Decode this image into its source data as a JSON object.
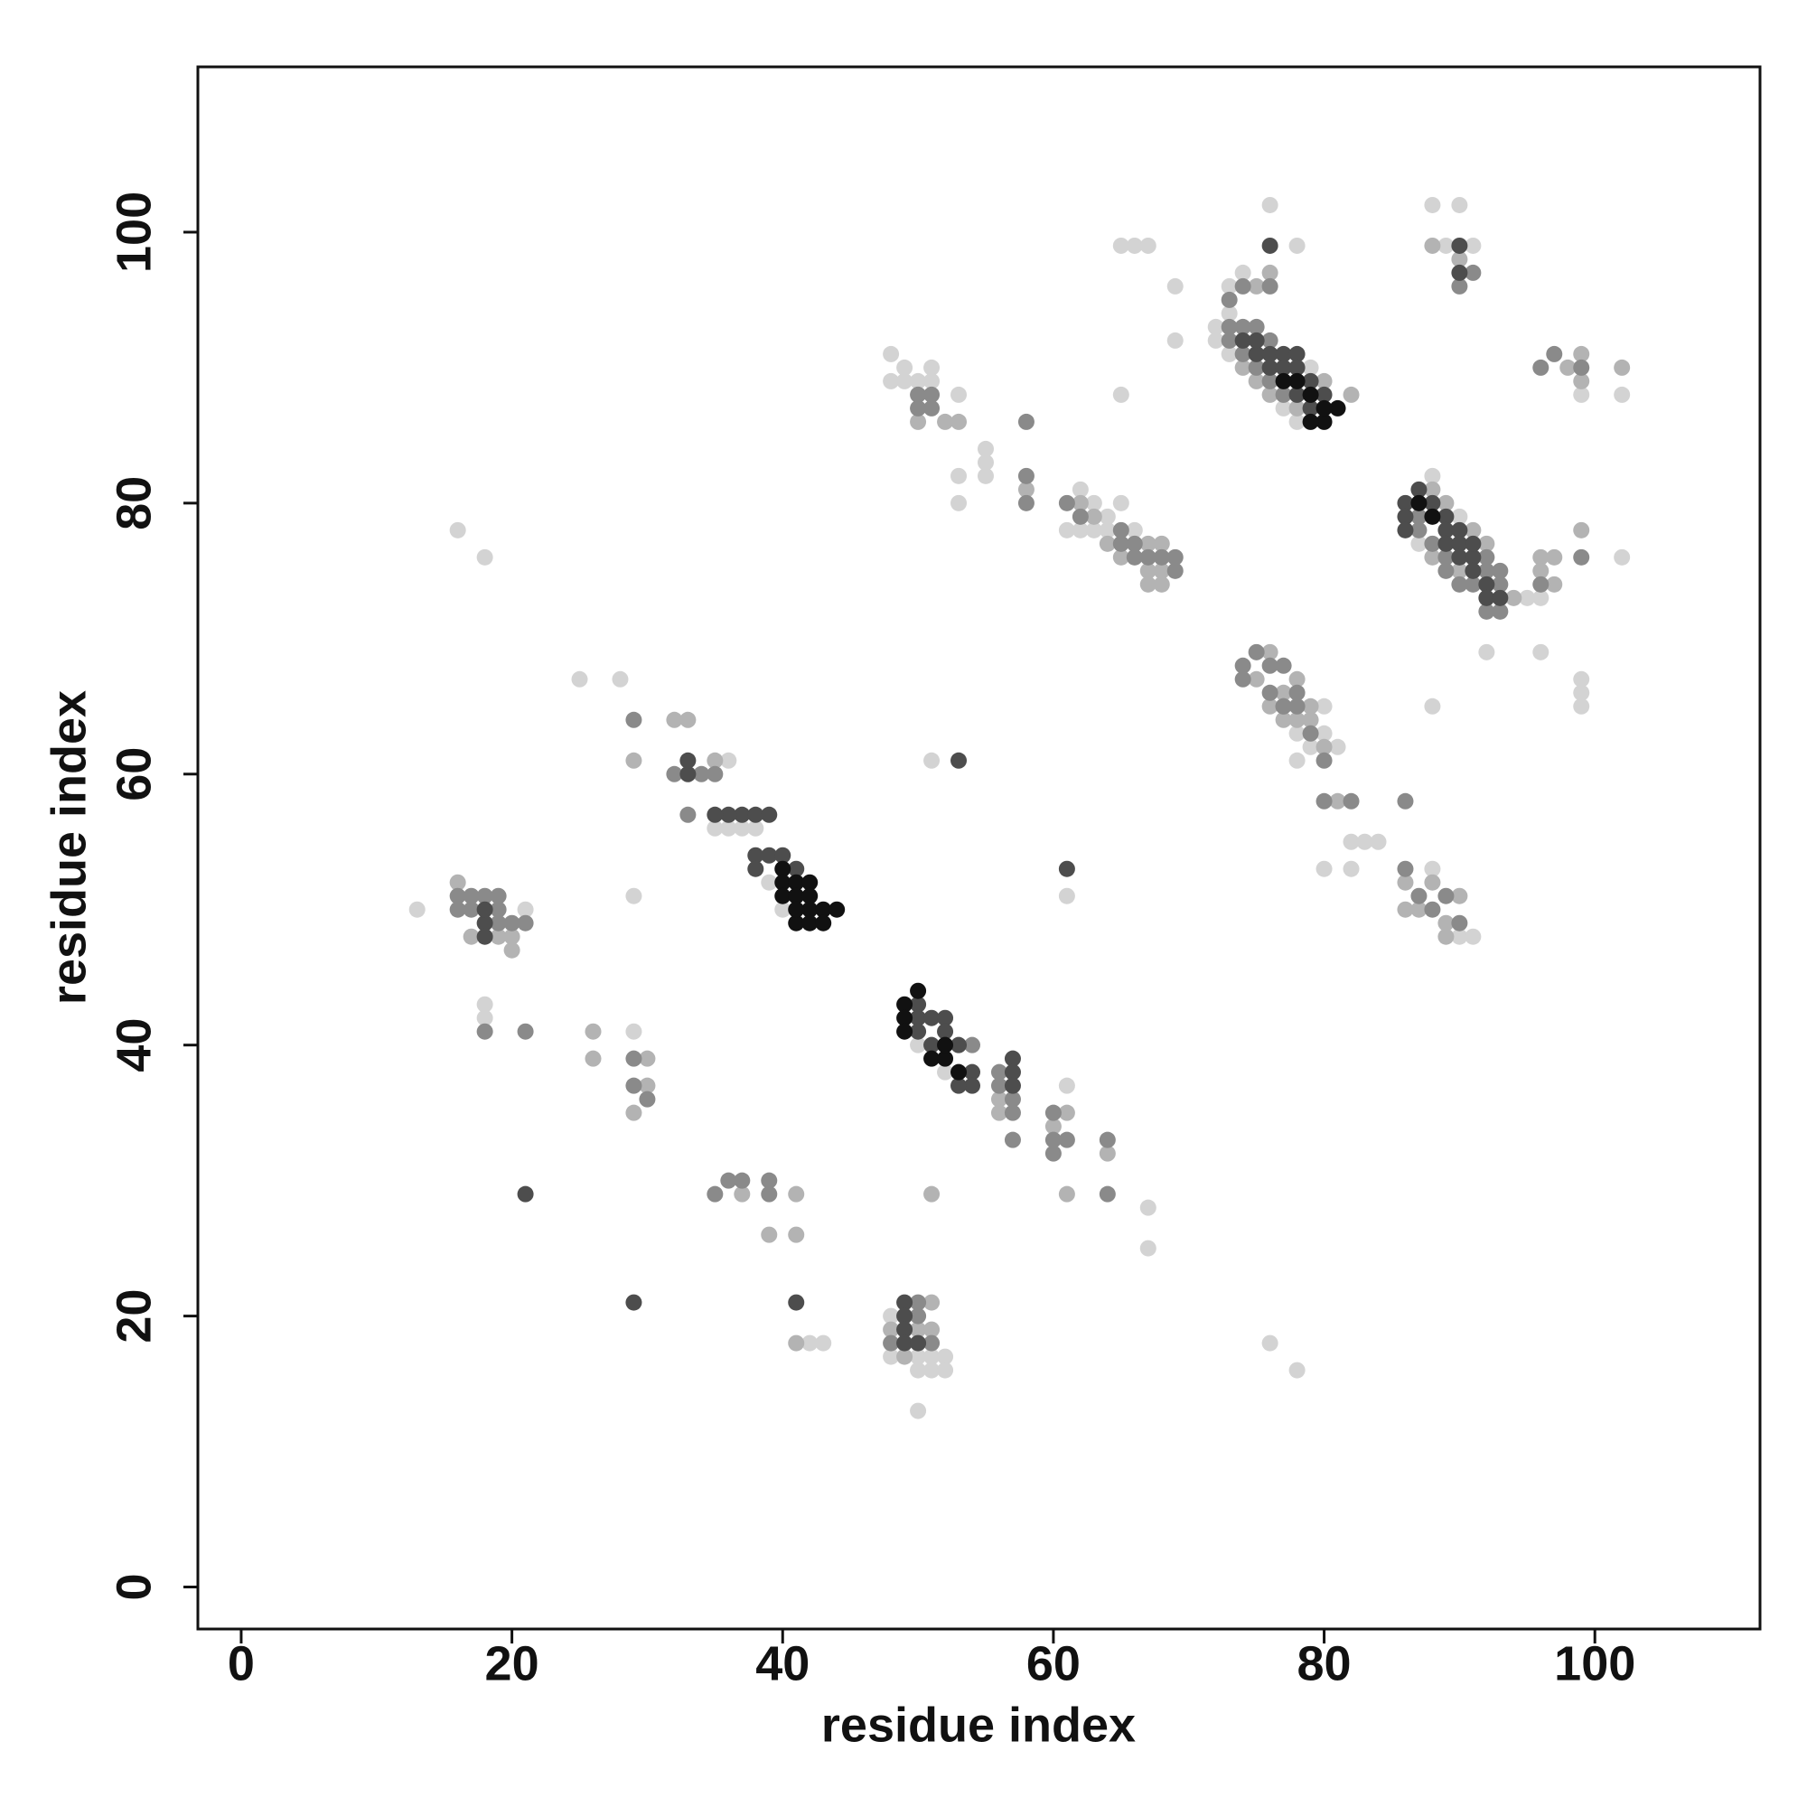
{
  "chart_data": {
    "type": "scatter",
    "x_label": "residue index",
    "y_label": "residue index",
    "xlim": [
      -3.2,
      112.2
    ],
    "ylim": [
      -3.1,
      112.2
    ],
    "xticks": [
      0,
      20,
      40,
      60,
      80,
      100
    ],
    "yticks": [
      0,
      20,
      40,
      60,
      80,
      100
    ],
    "series": [
      {
        "color": "#d3d3d3",
        "x": [
          16,
          18,
          13,
          18,
          18,
          21,
          25,
          28,
          29,
          29,
          36,
          35,
          36,
          37,
          38,
          39,
          40,
          42,
          43,
          48,
          48,
          50,
          51,
          52,
          51,
          52,
          50,
          50,
          50,
          52,
          61,
          67,
          67,
          51,
          61,
          48,
          49,
          48,
          49,
          50,
          51,
          51,
          53,
          53,
          53,
          55,
          55,
          55,
          62,
          63,
          64,
          65,
          61,
          62,
          63,
          64,
          66,
          65,
          66,
          67,
          69,
          69,
          65,
          73,
          73,
          74,
          76,
          78,
          72,
          73,
          72,
          79,
          77,
          78,
          81,
          78,
          78,
          79,
          80,
          80,
          82,
          83,
          84,
          80,
          82,
          88,
          90,
          91,
          76,
          78,
          88,
          90,
          87,
          95,
          96,
          92,
          96,
          88,
          99,
          99,
          99,
          102,
          88,
          90,
          89,
          91,
          99,
          102
        ],
        "values": [
          78,
          76,
          50,
          43,
          42,
          50,
          67,
          67,
          51,
          41,
          61,
          56,
          56,
          56,
          56,
          52,
          50,
          18,
          18,
          20,
          17,
          17,
          17,
          17,
          16,
          16,
          16,
          13,
          40,
          38,
          37,
          28,
          25,
          61,
          51,
          91,
          90,
          89,
          89,
          89,
          90,
          89,
          88,
          82,
          80,
          84,
          83,
          82,
          81,
          80,
          79,
          80,
          78,
          78,
          78,
          78,
          78,
          99,
          99,
          99,
          96,
          92,
          88,
          96,
          94,
          97,
          102,
          99,
          92,
          91,
          93,
          90,
          87,
          86,
          62,
          61,
          63,
          62,
          65,
          63,
          55,
          55,
          55,
          53,
          53,
          53,
          48,
          48,
          18,
          16,
          82,
          79,
          77,
          73,
          73,
          69,
          69,
          65,
          67,
          66,
          65,
          76,
          102,
          102,
          99,
          99,
          88,
          88
        ]
      },
      {
        "color": "#b3b3b3",
        "x": [
          16,
          17,
          19,
          20,
          20,
          26,
          26,
          29,
          32,
          33,
          35,
          30,
          30,
          29,
          37,
          39,
          41,
          41,
          51,
          61,
          56,
          56,
          60,
          61,
          64,
          50,
          51,
          51,
          48,
          49,
          41,
          52,
          50,
          53,
          58,
          62,
          63,
          64,
          65,
          67,
          68,
          68,
          67,
          67,
          68,
          75,
          76,
          74,
          75,
          76,
          78,
          80,
          82,
          75,
          76,
          76,
          77,
          77,
          78,
          78,
          79,
          79,
          80,
          81,
          86,
          86,
          87,
          88,
          89,
          89,
          90,
          88,
          89,
          90,
          91,
          92,
          94,
          96,
          96,
          97,
          97,
          99,
          99,
          102,
          88,
          88,
          90,
          98,
          99
        ],
        "values": [
          52,
          48,
          48,
          48,
          47,
          41,
          39,
          61,
          64,
          64,
          61,
          39,
          37,
          35,
          29,
          26,
          26,
          29,
          29,
          29,
          36,
          35,
          34,
          35,
          32,
          19,
          21,
          19,
          19,
          17,
          18,
          86,
          86,
          86,
          81,
          80,
          79,
          77,
          76,
          77,
          77,
          75,
          75,
          74,
          74,
          96,
          97,
          90,
          89,
          88,
          87,
          89,
          88,
          67,
          69,
          65,
          64,
          66,
          67,
          64,
          65,
          64,
          62,
          58,
          52,
          50,
          50,
          52,
          49,
          48,
          51,
          76,
          80,
          75,
          78,
          77,
          73,
          76,
          75,
          76,
          74,
          91,
          89,
          90,
          81,
          99,
          98,
          90,
          78
        ]
      },
      {
        "color": "#8a8a8a",
        "x": [
          16,
          16,
          17,
          19,
          19,
          19,
          20,
          21,
          17,
          18,
          18,
          21,
          29,
          33,
          32,
          34,
          35,
          29,
          29,
          30,
          35,
          36,
          37,
          39,
          39,
          54,
          56,
          56,
          57,
          57,
          57,
          60,
          60,
          60,
          61,
          64,
          64,
          50,
          51,
          51,
          50,
          58,
          58,
          58,
          61,
          62,
          65,
          65,
          66,
          66,
          67,
          68,
          69,
          69,
          73,
          73,
          74,
          75,
          74,
          75,
          76,
          77,
          76,
          74,
          76,
          73,
          74,
          74,
          75,
          76,
          76,
          77,
          77,
          77,
          78,
          78,
          79,
          80,
          80,
          82,
          86,
          86,
          87,
          88,
          89,
          90,
          87,
          87,
          88,
          89,
          89,
          90,
          91,
          92,
          92,
          93,
          93,
          92,
          93,
          96,
          97,
          99,
          99,
          96,
          90,
          91,
          50,
          50,
          51,
          48
        ],
        "values": [
          51,
          50,
          50,
          51,
          50,
          49,
          49,
          49,
          51,
          51,
          41,
          41,
          64,
          57,
          60,
          60,
          60,
          39,
          37,
          36,
          29,
          30,
          30,
          29,
          30,
          40,
          38,
          37,
          36,
          35,
          33,
          35,
          33,
          32,
          33,
          33,
          29,
          88,
          88,
          87,
          87,
          86,
          82,
          80,
          80,
          79,
          78,
          77,
          77,
          76,
          76,
          76,
          76,
          75,
          93,
          92,
          93,
          93,
          91,
          90,
          89,
          88,
          92,
          96,
          96,
          95,
          68,
          67,
          69,
          68,
          66,
          65,
          68,
          65,
          66,
          65,
          63,
          61,
          58,
          58,
          58,
          53,
          51,
          50,
          51,
          49,
          79,
          78,
          77,
          76,
          75,
          74,
          74,
          76,
          75,
          75,
          74,
          72,
          72,
          90,
          91,
          90,
          76,
          74,
          96,
          97,
          20,
          21,
          18,
          18
        ]
      },
      {
        "color": "#4d4d4d",
        "x": [
          18,
          18,
          18,
          21,
          29,
          41,
          53,
          61,
          37,
          38,
          39,
          38,
          39,
          40,
          38,
          41,
          50,
          50,
          50,
          51,
          51,
          52,
          52,
          53,
          54,
          54,
          53,
          57,
          57,
          57,
          49,
          49,
          49,
          49,
          50,
          36,
          35,
          33,
          33,
          74,
          75,
          75,
          76,
          76,
          77,
          77,
          78,
          78,
          78,
          79,
          79,
          80,
          76,
          86,
          86,
          87,
          88,
          89,
          89,
          89,
          90,
          90,
          90,
          91,
          91,
          92,
          92,
          93,
          91,
          90,
          90,
          86
        ],
        "values": [
          49,
          48,
          50,
          29,
          21,
          21,
          61,
          53,
          57,
          57,
          57,
          54,
          54,
          54,
          53,
          53,
          43,
          42,
          41,
          42,
          40,
          42,
          41,
          40,
          38,
          37,
          37,
          39,
          38,
          37,
          21,
          20,
          19,
          18,
          18,
          57,
          57,
          60,
          61,
          92,
          91,
          92,
          91,
          90,
          91,
          90,
          91,
          90,
          88,
          89,
          87,
          88,
          99,
          80,
          79,
          81,
          80,
          79,
          78,
          77,
          78,
          77,
          76,
          76,
          75,
          74,
          73,
          73,
          77,
          99,
          97,
          78
        ]
      },
      {
        "color": "#111111",
        "x": [
          40,
          40,
          41,
          42,
          40,
          41,
          42,
          42,
          43,
          44,
          41,
          42,
          43,
          41,
          49,
          49,
          49,
          50,
          51,
          52,
          52,
          53,
          80,
          81,
          79,
          80,
          87,
          88,
          79,
          78,
          77
        ],
        "values": [
          53,
          52,
          52,
          52,
          51,
          51,
          51,
          50,
          50,
          50,
          49,
          49,
          49,
          50,
          43,
          42,
          41,
          44,
          39,
          39,
          40,
          38,
          86,
          87,
          86,
          87,
          80,
          79,
          88,
          89,
          89
        ]
      }
    ]
  }
}
